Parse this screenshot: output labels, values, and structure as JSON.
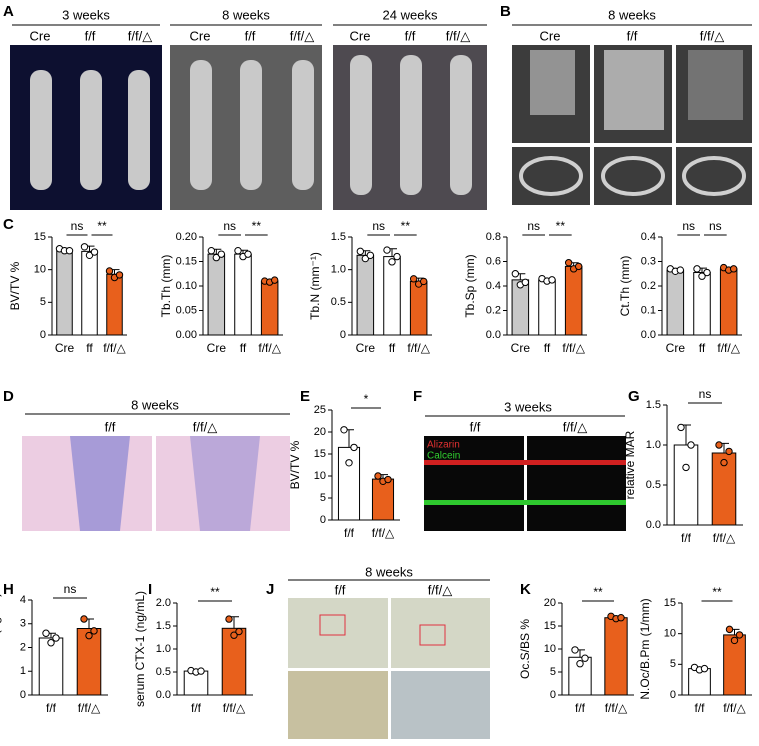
{
  "figure": {
    "panel_labels": [
      "A",
      "B",
      "C",
      "D",
      "E",
      "F",
      "G",
      "H",
      "I",
      "J",
      "K"
    ],
    "A": {
      "groups": [
        {
          "title": "3 weeks",
          "lanes": [
            "Cre",
            "f/f",
            "f/f/△"
          ]
        },
        {
          "title": "8 weeks",
          "lanes": [
            "Cre",
            "f/f",
            "f/f/△"
          ]
        },
        {
          "title": "24 weeks",
          "lanes": [
            "Cre",
            "f/f",
            "f/f/△"
          ]
        }
      ]
    },
    "B": {
      "title": "8 weeks",
      "lanes": [
        "Cre",
        "f/f",
        "f/f/△"
      ]
    },
    "D": {
      "title": "8 weeks",
      "lanes": [
        "f/f",
        "f/f/△"
      ]
    },
    "F": {
      "title": "3 weeks",
      "lanes": [
        "f/f",
        "f/f/△"
      ],
      "stains": [
        "Alizarin",
        "Calcein"
      ]
    },
    "J": {
      "title": "8 weeks",
      "lanes": [
        "f/f",
        "f/f/△"
      ]
    }
  },
  "chart_data": [
    {
      "type": "bar",
      "ylabel": "BV/TV %",
      "categories": [
        "Cre",
        "ff",
        "f/f/△"
      ],
      "colors": [
        "#c8c8c8",
        "#ffffff",
        "#e8601c"
      ],
      "values": [
        13.0,
        12.8,
        9.3
      ],
      "errors": [
        0.3,
        0.8,
        0.7
      ],
      "points": [
        [
          13.2,
          12.9,
          12.9
        ],
        [
          13.5,
          12.2,
          12.7
        ],
        [
          9.8,
          8.8,
          9.2
        ]
      ],
      "ylim": [
        0,
        15
      ],
      "yticks": [
        0,
        5,
        10,
        15
      ],
      "significance": [
        "ns",
        "**"
      ]
    },
    {
      "type": "bar",
      "ylabel": "Tb.Th (mm)",
      "categories": [
        "Cre",
        "ff",
        "f/f/△"
      ],
      "colors": [
        "#c8c8c8",
        "#ffffff",
        "#e8601c"
      ],
      "values": [
        0.165,
        0.165,
        0.11
      ],
      "errors": [
        0.01,
        0.008,
        0.003
      ],
      "points": [
        [
          0.172,
          0.158,
          0.165
        ],
        [
          0.172,
          0.16,
          0.165
        ],
        [
          0.11,
          0.108,
          0.112
        ]
      ],
      "ylim": [
        0,
        0.2
      ],
      "yticks": [
        {
          "value": 0,
          "label": "0.00"
        },
        0.05,
        {
          "value": 0.1,
          "label": "0.10"
        },
        0.15,
        {
          "value": 0.2,
          "label": "0.20"
        }
      ],
      "significance": [
        "ns",
        "**"
      ]
    },
    {
      "type": "bar",
      "ylabel": "Tb.N (mm⁻¹)",
      "categories": [
        "Cre",
        "ff",
        "f/f/△"
      ],
      "colors": [
        "#c8c8c8",
        "#ffffff",
        "#e8601c"
      ],
      "values": [
        1.22,
        1.2,
        0.82
      ],
      "errors": [
        0.07,
        0.12,
        0.05
      ],
      "points": [
        [
          1.28,
          1.17,
          1.22
        ],
        [
          1.3,
          1.12,
          1.2
        ],
        [
          0.86,
          0.78,
          0.82
        ]
      ],
      "ylim": [
        0,
        1.5
      ],
      "yticks": [
        0,
        0.5,
        {
          "value": 1,
          "label": "1.0"
        },
        1.5
      ],
      "significance": [
        "ns",
        "**"
      ]
    },
    {
      "type": "bar",
      "ylabel": "Tb.Sp (mm)",
      "categories": [
        "Cre",
        "ff",
        "f/f/△"
      ],
      "colors": [
        "#c8c8c8",
        "#ffffff",
        "#e8601c"
      ],
      "values": [
        0.45,
        0.45,
        0.56
      ],
      "errors": [
        0.05,
        0.01,
        0.03
      ],
      "points": [
        [
          0.5,
          0.41,
          0.43
        ],
        [
          0.46,
          0.44,
          0.45
        ],
        [
          0.59,
          0.54,
          0.56
        ]
      ],
      "ylim": [
        0,
        0.8
      ],
      "yticks": [
        {
          "value": 0,
          "label": "0.0"
        },
        0.2,
        0.4,
        0.6,
        0.8
      ],
      "significance": [
        "ns",
        "**"
      ]
    },
    {
      "type": "bar",
      "ylabel": "Ct.Th (mm)",
      "categories": [
        "Cre",
        "ff",
        "f/f/△"
      ],
      "colors": [
        "#c8c8c8",
        "#ffffff",
        "#e8601c"
      ],
      "values": [
        0.265,
        0.255,
        0.27
      ],
      "errors": [
        0.007,
        0.018,
        0.006
      ],
      "points": [
        [
          0.27,
          0.26,
          0.265
        ],
        [
          0.27,
          0.24,
          0.255
        ],
        [
          0.275,
          0.265,
          0.27
        ]
      ],
      "ylim": [
        0,
        0.4
      ],
      "yticks": [
        {
          "value": 0,
          "label": "0.0"
        },
        0.1,
        0.2,
        0.3,
        0.4
      ],
      "significance": [
        "ns",
        "ns"
      ]
    },
    {
      "type": "bar",
      "ylabel": "BV/TV %",
      "categories": [
        "f/f",
        "f/f/△"
      ],
      "colors": [
        "#ffffff",
        "#e8601c"
      ],
      "values": [
        16.5,
        9.3
      ],
      "errors": [
        4,
        1
      ],
      "points": [
        [
          20.5,
          13,
          16.5
        ],
        [
          10,
          8.8,
          9.2
        ]
      ],
      "ylim": [
        0,
        25
      ],
      "yticks": [
        0,
        5,
        10,
        15,
        20,
        25
      ],
      "significance": [
        "*"
      ]
    },
    {
      "type": "bar",
      "ylabel": "relative MAR",
      "categories": [
        "f/f",
        "f/f/△"
      ],
      "colors": [
        "#ffffff",
        "#e8601c"
      ],
      "values": [
        1.0,
        0.9
      ],
      "errors": [
        0.25,
        0.12
      ],
      "points": [
        [
          1.22,
          0.72,
          1.0
        ],
        [
          1.0,
          0.78,
          0.92
        ]
      ],
      "ylim": [
        0,
        1.5
      ],
      "yticks": [
        {
          "value": 0,
          "label": "0.0"
        },
        0.5,
        {
          "value": 1,
          "label": "1.0"
        },
        1.5
      ],
      "significance": [
        "ns"
      ]
    },
    {
      "type": "bar",
      "ylabel": "serum PINP (ng/mL)",
      "categories": [
        "f/f",
        "f/f/△"
      ],
      "colors": [
        "#ffffff",
        "#e8601c"
      ],
      "values": [
        2.4,
        2.8
      ],
      "errors": [
        0.2,
        0.4
      ],
      "points": [
        [
          2.6,
          2.2,
          2.4
        ],
        [
          3.2,
          2.5,
          2.7
        ]
      ],
      "ylim": [
        0,
        4
      ],
      "yticks": [
        0,
        1,
        2,
        3,
        4
      ],
      "significance": [
        "ns"
      ]
    },
    {
      "type": "bar",
      "ylabel": "serum CTX-1 (ng/mL)",
      "categories": [
        "f/f",
        "f/f/△"
      ],
      "colors": [
        "#ffffff",
        "#e8601c"
      ],
      "values": [
        0.52,
        1.45
      ],
      "errors": [
        0.03,
        0.25
      ],
      "points": [
        [
          0.53,
          0.5,
          0.52
        ],
        [
          1.65,
          1.3,
          1.38
        ]
      ],
      "ylim": [
        0,
        2
      ],
      "yticks": [
        {
          "value": 0,
          "label": "0.0"
        },
        0.5,
        {
          "value": 1,
          "label": "1.0"
        },
        1.5,
        {
          "value": 2,
          "label": "2.0"
        }
      ],
      "significance": [
        "**"
      ]
    },
    {
      "type": "bar",
      "ylabel": "Oc.S/BS %",
      "categories": [
        "f/f",
        "f/f/△"
      ],
      "colors": [
        "#ffffff",
        "#e8601c"
      ],
      "values": [
        8.2,
        16.8
      ],
      "errors": [
        1.6,
        0.3
      ],
      "points": [
        [
          9.8,
          6.8,
          8.0
        ],
        [
          17.1,
          16.6,
          16.8
        ]
      ],
      "ylim": [
        0,
        20
      ],
      "yticks": [
        0,
        5,
        10,
        15,
        20
      ],
      "significance": [
        "**"
      ]
    },
    {
      "type": "bar",
      "ylabel": "N.Oc/B.Pm (1/mm)",
      "categories": [
        "f/f",
        "f/f/△"
      ],
      "colors": [
        "#ffffff",
        "#e8601c"
      ],
      "values": [
        4.3,
        9.8
      ],
      "errors": [
        0.2,
        0.9
      ],
      "points": [
        [
          4.5,
          4.1,
          4.3
        ],
        [
          10.7,
          8.9,
          9.8
        ]
      ],
      "ylim": [
        0,
        15
      ],
      "yticks": [
        0,
        5,
        10,
        15
      ],
      "significance": [
        "**"
      ]
    }
  ]
}
